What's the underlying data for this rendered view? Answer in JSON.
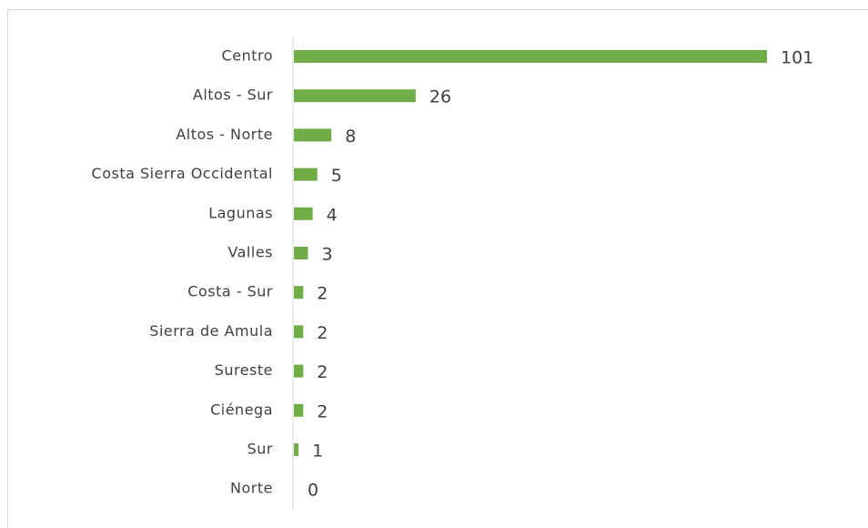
{
  "chart_data": {
    "type": "bar",
    "orientation": "horizontal",
    "color": "#70ad47",
    "categories": [
      "Centro",
      "Altos - Sur",
      "Altos - Norte",
      "Costa Sierra Occidental",
      "Lagunas",
      "Valles",
      "Costa - Sur",
      "Sierra de Amula",
      "Sureste",
      "Ciénega",
      "Sur",
      "Norte"
    ],
    "values": [
      101,
      26,
      8,
      5,
      4,
      3,
      2,
      2,
      2,
      2,
      1,
      0
    ]
  }
}
